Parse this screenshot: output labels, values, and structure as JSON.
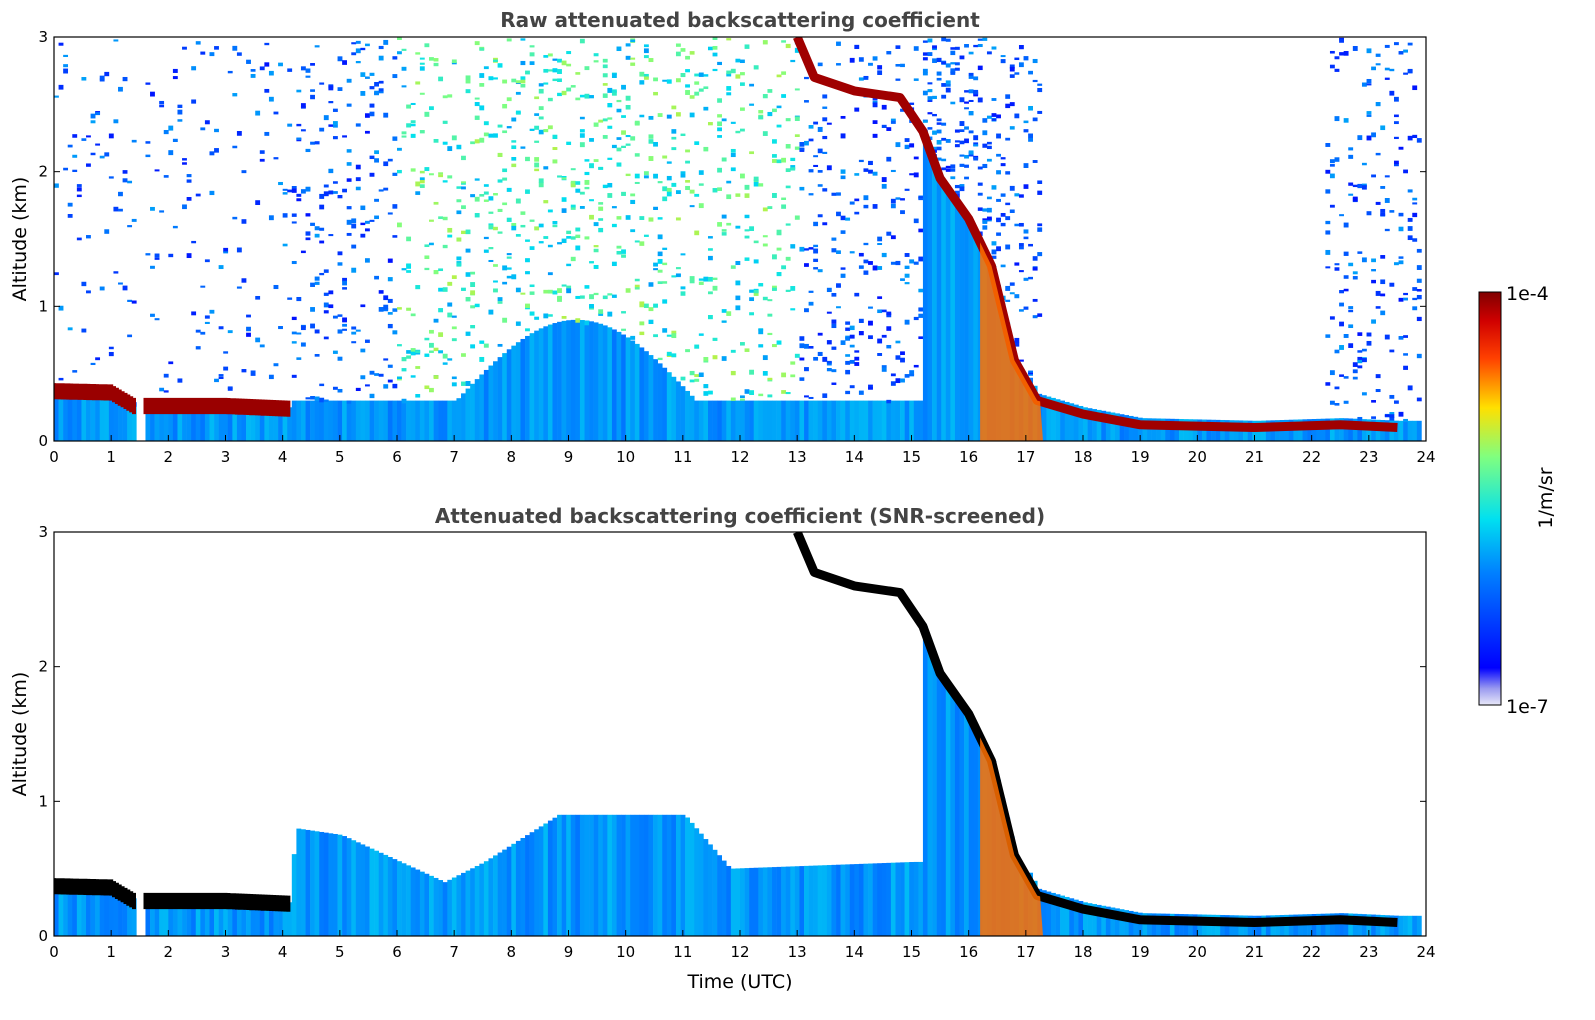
{
  "chart_data": [
    {
      "type": "heatmap",
      "title": "Raw attenuated backscattering coefficient",
      "xlabel": "",
      "ylabel": "Altitude (km)",
      "xlim": [
        0,
        24
      ],
      "ylim": [
        0,
        3
      ],
      "xticks": [
        "0",
        "1",
        "2",
        "3",
        "4",
        "5",
        "6",
        "7",
        "8",
        "9",
        "10",
        "11",
        "12",
        "13",
        "14",
        "15",
        "16",
        "17",
        "18",
        "19",
        "20",
        "21",
        "22",
        "23",
        "24"
      ],
      "yticks": [
        "0",
        "1",
        "2",
        "3"
      ],
      "features": {
        "boundary_layer_top_km": [
          {
            "t": 0.0,
            "z": 0.38
          },
          {
            "t": 1.0,
            "z": 0.37
          },
          {
            "t": 1.4,
            "z": 0.27
          },
          {
            "t": 2.0,
            "z": 0.27
          },
          {
            "t": 3.0,
            "z": 0.27
          },
          {
            "t": 4.1,
            "z": 0.25
          }
        ],
        "descending_cloud_layer_km": [
          {
            "t": 13.0,
            "z": 3.0
          },
          {
            "t": 13.3,
            "z": 2.7
          },
          {
            "t": 14.0,
            "z": 2.6
          },
          {
            "t": 14.8,
            "z": 2.55
          },
          {
            "t": 15.2,
            "z": 2.3
          },
          {
            "t": 15.5,
            "z": 1.95
          },
          {
            "t": 16.0,
            "z": 1.65
          },
          {
            "t": 16.4,
            "z": 1.3
          },
          {
            "t": 16.8,
            "z": 0.6
          },
          {
            "t": 17.2,
            "z": 0.3
          },
          {
            "t": 18.0,
            "z": 0.2
          },
          {
            "t": 19.0,
            "z": 0.12
          },
          {
            "t": 21.0,
            "z": 0.1
          },
          {
            "t": 22.5,
            "z": 0.12
          },
          {
            "t": 23.5,
            "z": 0.1
          }
        ],
        "data_gap_utc": [
          1.43,
          1.56
        ]
      }
    },
    {
      "type": "heatmap",
      "title": "Attenuated backscattering coefficient (SNR-screened)",
      "xlabel": "Time (UTC)",
      "ylabel": "Altitude (km)",
      "xlim": [
        0,
        24
      ],
      "ylim": [
        0,
        3
      ],
      "xticks": [
        "0",
        "1",
        "2",
        "3",
        "4",
        "5",
        "6",
        "7",
        "8",
        "9",
        "10",
        "11",
        "12",
        "13",
        "14",
        "15",
        "16",
        "17",
        "18",
        "19",
        "20",
        "21",
        "22",
        "23",
        "24"
      ],
      "yticks": [
        "0",
        "1",
        "2",
        "3"
      ],
      "features": {
        "valid_signal_top_km": [
          {
            "t": 0.0,
            "z": 0.45
          },
          {
            "t": 4.1,
            "z": 0.32
          },
          {
            "t": 4.2,
            "z": 0.8
          },
          {
            "t": 5.0,
            "z": 0.75
          },
          {
            "t": 6.8,
            "z": 0.4
          },
          {
            "t": 7.5,
            "z": 0.55
          },
          {
            "t": 8.8,
            "z": 0.9
          },
          {
            "t": 11.0,
            "z": 0.9
          },
          {
            "t": 11.8,
            "z": 0.5
          },
          {
            "t": 15.0,
            "z": 0.55
          }
        ]
      }
    }
  ],
  "colorbar": {
    "max_label": "1e-4",
    "min_label": "1e-7",
    "unit_label": "1/m/sr",
    "colormap": "jet"
  }
}
